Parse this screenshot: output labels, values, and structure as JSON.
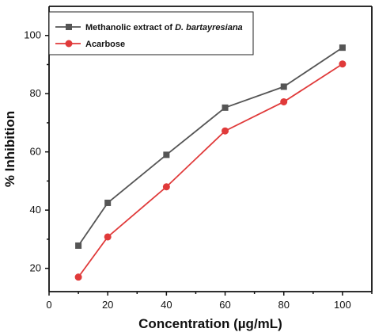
{
  "chart_data": {
    "type": "line",
    "x": [
      10,
      20,
      40,
      60,
      80,
      100
    ],
    "series": [
      {
        "name": "Methanolic extract of D. bartayresiana",
        "values": [
          27.8,
          42.5,
          59.0,
          75.2,
          82.4,
          95.8
        ],
        "color": "#555555",
        "marker": "square"
      },
      {
        "name": "Acarbose",
        "values": [
          17.0,
          30.8,
          48.0,
          67.2,
          77.2,
          90.2
        ],
        "color": "#e03a3a",
        "marker": "circle"
      }
    ],
    "xlabel": "Concentration (µg/mL)",
    "ylabel": "% Inhibition",
    "xlim": [
      0,
      110
    ],
    "ylim": [
      12,
      110
    ],
    "xticks": [
      0,
      20,
      40,
      60,
      80,
      100
    ],
    "yticks": [
      20,
      40,
      60,
      80,
      100
    ],
    "grid": false,
    "legend_position": "top-left",
    "legend": {
      "series_1_prefix": "Methanolic extract of ",
      "series_1_italic": "D. bartayresiana",
      "series_2": "Acarbose"
    }
  }
}
